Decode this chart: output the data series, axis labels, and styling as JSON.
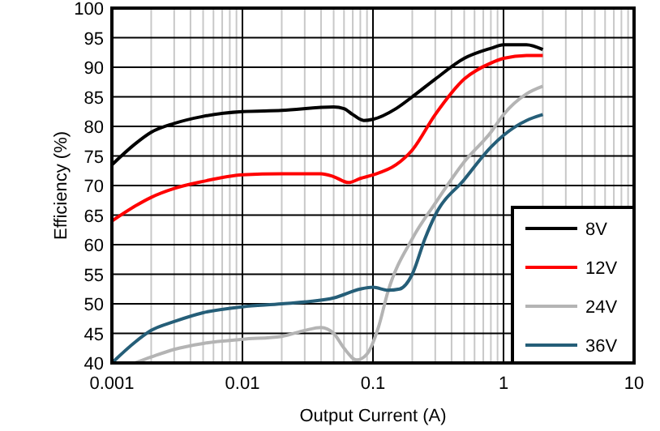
{
  "chart_data": {
    "type": "line",
    "xlabel": "Output Current (A)",
    "ylabel": "Efficiency (%)",
    "log": "x",
    "grid": true,
    "legend": "bottom right",
    "line_style": "solid",
    "marker": "none",
    "xlim": [
      0.001,
      10
    ],
    "xticks": [
      0.001,
      0.01,
      0.1,
      1,
      10
    ],
    "ylim": [
      40,
      100
    ],
    "yticks": [
      40,
      45,
      50,
      55,
      60,
      65,
      70,
      75,
      80,
      85,
      90,
      95,
      100
    ],
    "series": [
      {
        "name": "8V",
        "color": "#000000",
        "x": [
          0.001,
          0.0015,
          0.002,
          0.003,
          0.005,
          0.01,
          0.02,
          0.05,
          0.06,
          0.07,
          0.085,
          0.1,
          0.15,
          0.2,
          0.3,
          0.5,
          0.8,
          1,
          1.5,
          2
        ],
        "values": [
          73.5,
          77,
          79,
          80.5,
          81.7,
          82.5,
          82.7,
          83.3,
          83,
          82,
          81,
          81.2,
          83,
          85,
          88,
          91.5,
          93.2,
          93.8,
          93.8,
          93
        ]
      },
      {
        "name": "12V",
        "color": "#ff0000",
        "x": [
          0.001,
          0.0015,
          0.002,
          0.003,
          0.005,
          0.01,
          0.02,
          0.04,
          0.05,
          0.065,
          0.08,
          0.1,
          0.15,
          0.2,
          0.3,
          0.5,
          0.8,
          1,
          1.5,
          2
        ],
        "values": [
          64,
          66.5,
          68,
          69.5,
          70.7,
          71.8,
          72,
          72,
          71.5,
          70.5,
          71.2,
          71.8,
          73.5,
          76,
          82,
          88,
          90.7,
          91.5,
          92,
          92
        ]
      },
      {
        "name": "24V",
        "color": "#b4b4b4",
        "x": [
          0.0015,
          0.002,
          0.003,
          0.005,
          0.01,
          0.02,
          0.03,
          0.04,
          0.05,
          0.06,
          0.075,
          0.09,
          0.11,
          0.13,
          0.2,
          0.3,
          0.5,
          0.8,
          1,
          1.5,
          2
        ],
        "values": [
          40,
          41,
          42.3,
          43.3,
          44,
          44.5,
          45.5,
          46,
          45,
          42.5,
          40.5,
          41.5,
          46,
          52,
          61,
          67,
          74,
          79,
          82,
          85.5,
          86.8
        ]
      },
      {
        "name": "36V",
        "color": "#255e78",
        "x": [
          0.001,
          0.0015,
          0.002,
          0.003,
          0.005,
          0.01,
          0.02,
          0.05,
          0.08,
          0.1,
          0.13,
          0.16,
          0.2,
          0.25,
          0.3,
          0.5,
          0.8,
          1,
          1.5,
          2
        ],
        "values": [
          40,
          43.5,
          45.5,
          47,
          48.5,
          49.5,
          50,
          51,
          52.5,
          52.8,
          52.3,
          52.5,
          55,
          61,
          65,
          71,
          76.5,
          78.5,
          81,
          82
        ]
      }
    ]
  }
}
